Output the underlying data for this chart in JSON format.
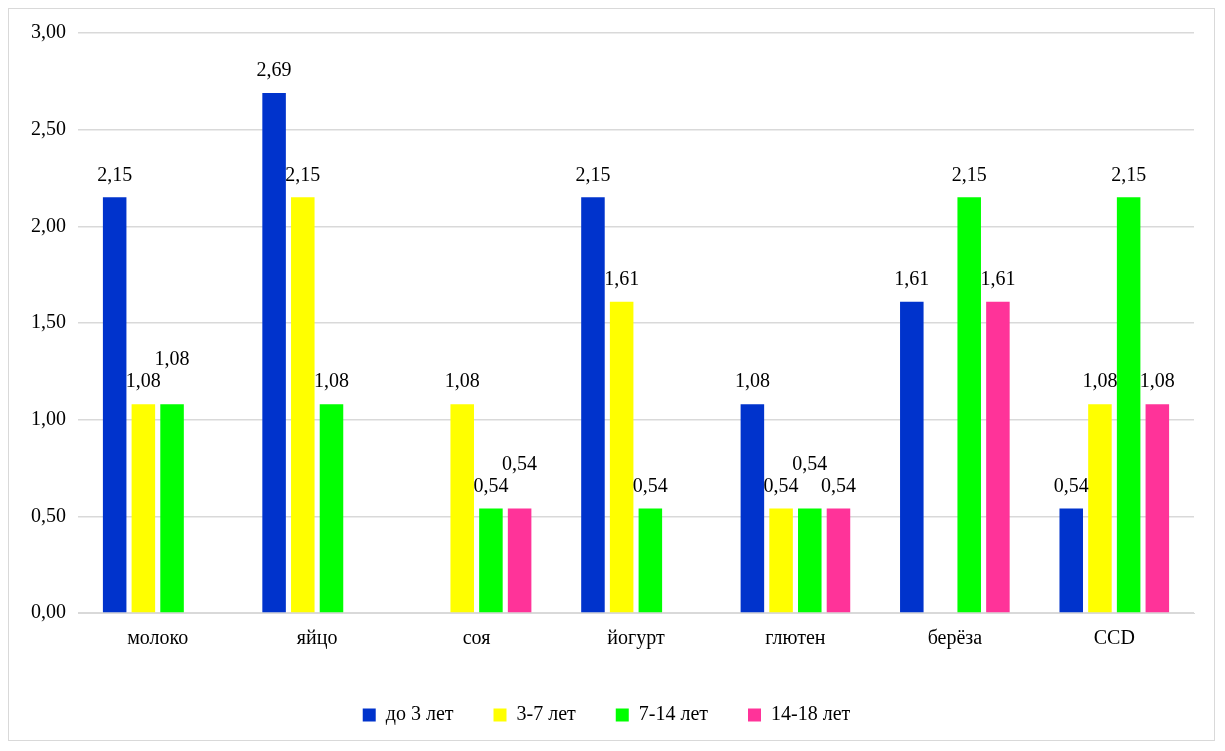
{
  "chart_data": {
    "type": "bar",
    "categories": [
      "молоко",
      "яйцо",
      "соя",
      "йогурт",
      "глютен",
      "берёза",
      "CCD"
    ],
    "series": [
      {
        "name": "до 3 лет",
        "color": "#0033cc",
        "values": [
          2.15,
          2.69,
          null,
          2.15,
          1.08,
          1.61,
          0.54
        ],
        "value_labels": [
          "2,15",
          "2,69",
          null,
          "2,15",
          "1,08",
          "1,61",
          "0,54"
        ]
      },
      {
        "name": "3-7 лет",
        "color": "#ffff00",
        "values": [
          1.08,
          2.15,
          1.08,
          1.61,
          0.54,
          null,
          1.08
        ],
        "value_labels": [
          "1,08",
          "2,15",
          "1,08",
          "1,61",
          "0,54",
          null,
          "1,08"
        ]
      },
      {
        "name": "7-14 лет",
        "color": "#00ff00",
        "values": [
          1.08,
          1.08,
          0.54,
          0.54,
          0.54,
          2.15,
          2.15
        ],
        "value_labels": [
          "1,08",
          "1,08",
          "0,54",
          "0,54",
          "0,54",
          "2,15",
          "2,15"
        ]
      },
      {
        "name": "14-18 лет",
        "color": "#ff3399",
        "values": [
          null,
          null,
          0.54,
          null,
          0.54,
          1.61,
          1.08
        ],
        "value_labels": [
          null,
          null,
          "0,54",
          null,
          "0,54",
          "1,61",
          "1,08"
        ]
      }
    ],
    "ylim": [
      0,
      3
    ],
    "yticks": [
      {
        "value": 0,
        "label": "0,00"
      },
      {
        "value": 0.5,
        "label": "0,50"
      },
      {
        "value": 1,
        "label": "1,00"
      },
      {
        "value": 1.5,
        "label": "1,50"
      },
      {
        "value": 2,
        "label": "2,00"
      },
      {
        "value": 2.5,
        "label": "2,50"
      },
      {
        "value": 3,
        "label": "3,00"
      }
    ],
    "grid": "y",
    "legend": "bottom"
  }
}
